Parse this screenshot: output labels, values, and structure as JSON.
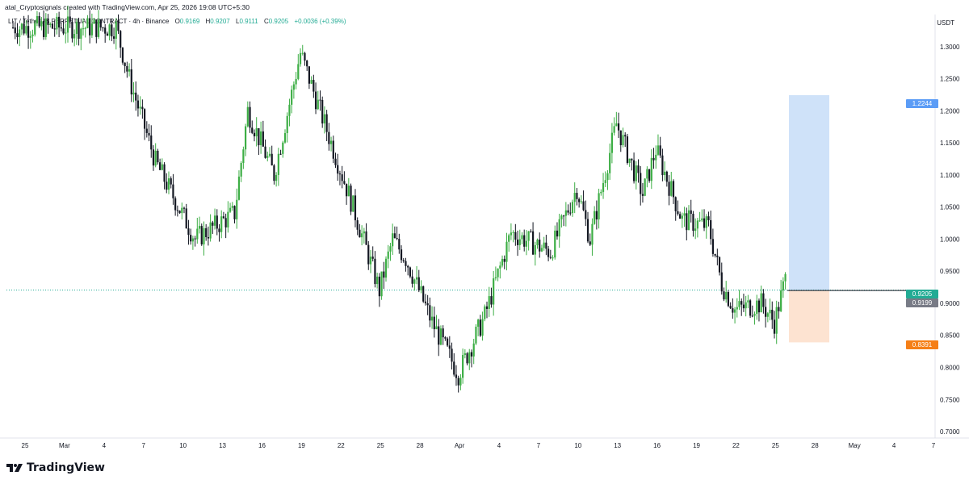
{
  "header": {
    "credit": "atal_Cryptosignals created with TradingView.com, Apr 25, 2026 19:08 UTC+5:30"
  },
  "legend": {
    "symbol": "LIT / TetherUS PERPETUAL CONTRACT · 4h · Binance",
    "o_label": "O",
    "o": "0.9169",
    "h_label": "H",
    "h": "0.9207",
    "l_label": "L",
    "l": "0.9111",
    "c_label": "C",
    "c": "0.9205",
    "change": "+0.0036 (+0.39%)"
  },
  "axis": {
    "unit": "USDT"
  },
  "brand": {
    "name": "TradingView"
  },
  "colors": {
    "up": "#22ab94",
    "up_candle": "#3dae45",
    "down_candle": "#131722",
    "profit_zone": "#cfe2f9",
    "loss_zone": "#fde3d1",
    "target_tag": "#5b9cf6",
    "stop_tag": "#f57f17",
    "last_tag": "#22ab94",
    "entry_tag": "#787b86"
  },
  "chart_data": {
    "type": "candlestick",
    "y_ticks": [
      "0.7000",
      "0.7500",
      "0.8000",
      "0.8500",
      "0.9000",
      "0.9500",
      "1.0000",
      "1.0500",
      "1.1000",
      "1.1500",
      "1.2000",
      "1.2500",
      "1.3000"
    ],
    "ylim": [
      0.69,
      1.35
    ],
    "x_ticks": [
      "25",
      "Mar",
      "4",
      "7",
      "10",
      "13",
      "16",
      "19",
      "22",
      "25",
      "28",
      "Apr",
      "4",
      "7",
      "10",
      "13",
      "16",
      "19",
      "22",
      "25",
      "28",
      "May",
      "4",
      "7"
    ],
    "price_path_keypoints": [
      {
        "x": "Feb 24",
        "y": 1.33
      },
      {
        "x": "Mar 1",
        "y": 1.33
      },
      {
        "x": "Mar 4",
        "y": 1.33
      },
      {
        "x": "Mar 5",
        "y": 1.25
      },
      {
        "x": "Mar 7",
        "y": 1.12
      },
      {
        "x": "Mar 10",
        "y": 1.0
      },
      {
        "x": "Mar 13",
        "y": 1.04
      },
      {
        "x": "Mar 14",
        "y": 1.2
      },
      {
        "x": "Mar 16",
        "y": 1.1
      },
      {
        "x": "Mar 18",
        "y": 1.29
      },
      {
        "x": "Mar 20",
        "y": 1.17
      },
      {
        "x": "Mar 22",
        "y": 1.05
      },
      {
        "x": "Mar 24",
        "y": 0.92
      },
      {
        "x": "Mar 25",
        "y": 1.0
      },
      {
        "x": "Mar 26",
        "y": 0.97
      },
      {
        "x": "Mar 28",
        "y": 0.87
      },
      {
        "x": "Mar 30",
        "y": 0.79
      },
      {
        "x": "Apr 1",
        "y": 0.88
      },
      {
        "x": "Apr 3",
        "y": 1.01
      },
      {
        "x": "Apr 6",
        "y": 0.98
      },
      {
        "x": "Apr 8",
        "y": 1.08
      },
      {
        "x": "Apr 9",
        "y": 1.0
      },
      {
        "x": "Apr 11",
        "y": 1.18
      },
      {
        "x": "Apr 13",
        "y": 1.07
      },
      {
        "x": "Apr 14",
        "y": 1.14
      },
      {
        "x": "Apr 16",
        "y": 1.03
      },
      {
        "x": "Apr 18",
        "y": 1.02
      },
      {
        "x": "Apr 19",
        "y": 0.93
      },
      {
        "x": "Apr 20",
        "y": 0.89
      },
      {
        "x": "Apr 22",
        "y": 0.9
      },
      {
        "x": "Apr 23",
        "y": 0.87
      },
      {
        "x": "Apr 24",
        "y": 0.95
      },
      {
        "x": "Apr 25",
        "y": 0.92
      }
    ],
    "last_price": {
      "label": "0.9205",
      "value": 0.9205
    },
    "position": {
      "target": {
        "label": "1.2244",
        "value": 1.2244
      },
      "entry": {
        "label": "0.9199",
        "value": 0.9199
      },
      "stop": {
        "label": "0.8391",
        "value": 0.8391
      }
    },
    "grid": false
  }
}
